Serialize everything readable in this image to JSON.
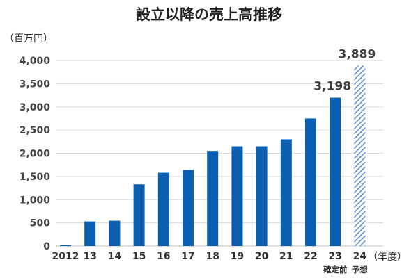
{
  "chart_data": {
    "type": "bar",
    "title": "設立以降の売上高推移",
    "ylabel": "（百万円）",
    "xlabel": "（年度）",
    "ylim": [
      0,
      4000
    ],
    "yticks": [
      0,
      500,
      1000,
      1500,
      2000,
      2500,
      3000,
      3500,
      4000
    ],
    "ytick_labels": [
      "0",
      "500",
      "1,000",
      "1,500",
      "2,000",
      "2,500",
      "3,000",
      "3,500",
      "4,000"
    ],
    "categories": [
      "2012",
      "13",
      "14",
      "15",
      "16",
      "17",
      "18",
      "19",
      "20",
      "21",
      "22",
      "23",
      "24"
    ],
    "category_sublabels": {
      "11": "確定前",
      "12": "予想"
    },
    "values": [
      30,
      530,
      545,
      1330,
      1580,
      1640,
      2050,
      2150,
      2150,
      2300,
      2750,
      3198,
      3889
    ],
    "styles": [
      "solid",
      "solid",
      "solid",
      "solid",
      "solid",
      "solid",
      "solid",
      "solid",
      "solid",
      "solid",
      "solid",
      "solid",
      "hatched"
    ],
    "data_labels": {
      "11": "3,198",
      "12": "3,889"
    },
    "grid": true,
    "colors": {
      "bar": "#0b5fb0",
      "forecast": "#3f7fc8"
    }
  }
}
